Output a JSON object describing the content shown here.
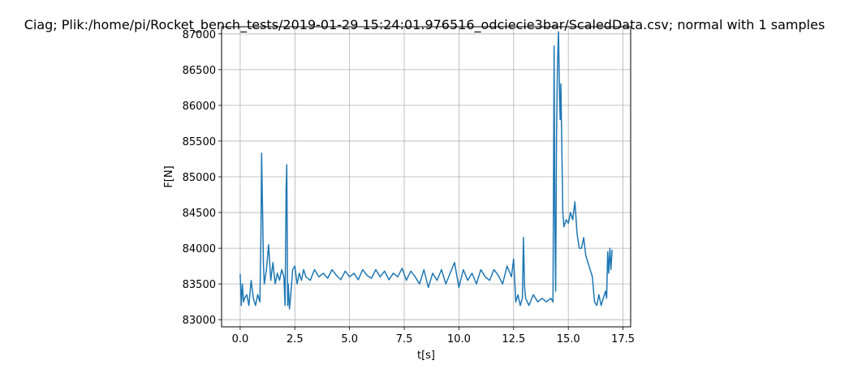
{
  "chart_data": {
    "type": "line",
    "title": "Ciag; Plik:/home/pi/Rocket_bench_tests/2019-01-29 15:24:01.976516_odciecie3bar/ScaledData.csv; normal with 1 samples",
    "xlabel": "t[s]",
    "ylabel": "F[N]",
    "xlim": [
      -0.85,
      17.85
    ],
    "ylim": [
      82900,
      87100
    ],
    "grid": true,
    "xticks": [
      0.0,
      2.5,
      5.0,
      7.5,
      10.0,
      12.5,
      15.0,
      17.5
    ],
    "xtick_labels": [
      "0.0",
      "2.5",
      "5.0",
      "7.5",
      "10.0",
      "12.5",
      "15.0",
      "17.5"
    ],
    "yticks": [
      83000,
      83500,
      84000,
      84500,
      85000,
      85500,
      86000,
      86500,
      87000
    ],
    "ytick_labels": [
      "83000",
      "83500",
      "84000",
      "84500",
      "85000",
      "85500",
      "86000",
      "86500",
      "87000"
    ],
    "series": [
      {
        "color": "#1f77b4",
        "x": [
          0.0,
          0.05,
          0.1,
          0.15,
          0.2,
          0.3,
          0.4,
          0.5,
          0.6,
          0.7,
          0.8,
          0.9,
          0.95,
          0.98,
          1.02,
          1.06,
          1.1,
          1.2,
          1.3,
          1.4,
          1.5,
          1.6,
          1.7,
          1.8,
          1.9,
          2.0,
          2.05,
          2.1,
          2.13,
          2.17,
          2.2,
          2.25,
          2.3,
          2.4,
          2.5,
          2.6,
          2.7,
          2.8,
          2.9,
          3.0,
          3.2,
          3.4,
          3.6,
          3.8,
          4.0,
          4.2,
          4.4,
          4.6,
          4.8,
          5.0,
          5.2,
          5.4,
          5.6,
          5.8,
          6.0,
          6.2,
          6.4,
          6.6,
          6.8,
          7.0,
          7.2,
          7.4,
          7.6,
          7.8,
          8.0,
          8.2,
          8.4,
          8.6,
          8.8,
          9.0,
          9.2,
          9.4,
          9.6,
          9.8,
          10.0,
          10.2,
          10.4,
          10.6,
          10.8,
          11.0,
          11.2,
          11.4,
          11.6,
          11.8,
          12.0,
          12.2,
          12.4,
          12.5,
          12.6,
          12.7,
          12.8,
          12.9,
          12.95,
          13.0,
          13.05,
          13.2,
          13.4,
          13.6,
          13.8,
          14.0,
          14.2,
          14.3,
          14.35,
          14.38,
          14.42,
          14.46,
          14.5,
          14.55,
          14.6,
          14.63,
          14.66,
          14.7,
          14.75,
          14.8,
          14.9,
          15.0,
          15.1,
          15.2,
          15.3,
          15.4,
          15.5,
          15.6,
          15.7,
          15.8,
          15.9,
          16.0,
          16.1,
          16.2,
          16.3,
          16.4,
          16.5,
          16.6,
          16.7,
          16.75,
          16.8,
          16.85,
          16.9,
          16.95,
          17.0
        ],
        "values": [
          83640,
          83200,
          83500,
          83250,
          83300,
          83350,
          83200,
          83550,
          83300,
          83200,
          83350,
          83250,
          84200,
          85330,
          84600,
          83800,
          83500,
          83700,
          84050,
          83550,
          83800,
          83500,
          83650,
          83550,
          83700,
          83600,
          83200,
          84800,
          85170,
          83200,
          83500,
          83150,
          83300,
          83700,
          83750,
          83500,
          83650,
          83550,
          83700,
          83600,
          83550,
          83700,
          83600,
          83650,
          83580,
          83700,
          83620,
          83560,
          83680,
          83600,
          83650,
          83560,
          83700,
          83620,
          83580,
          83700,
          83600,
          83680,
          83560,
          83650,
          83600,
          83720,
          83550,
          83680,
          83600,
          83500,
          83700,
          83450,
          83650,
          83550,
          83700,
          83500,
          83650,
          83800,
          83450,
          83700,
          83550,
          83650,
          83500,
          83700,
          83600,
          83550,
          83700,
          83620,
          83500,
          83750,
          83600,
          83850,
          83250,
          83350,
          83200,
          83300,
          84150,
          83450,
          83300,
          83200,
          83350,
          83250,
          83300,
          83250,
          83300,
          83250,
          86830,
          84500,
          83400,
          85500,
          86500,
          87030,
          86100,
          85800,
          86300,
          85500,
          84500,
          84300,
          84400,
          84350,
          84500,
          84400,
          84650,
          84200,
          84000,
          84000,
          84150,
          83900,
          83800,
          83700,
          83600,
          83250,
          83200,
          83350,
          83200,
          83300,
          83400,
          83300,
          83950,
          83650,
          84000,
          83700,
          83980
        ]
      }
    ]
  }
}
